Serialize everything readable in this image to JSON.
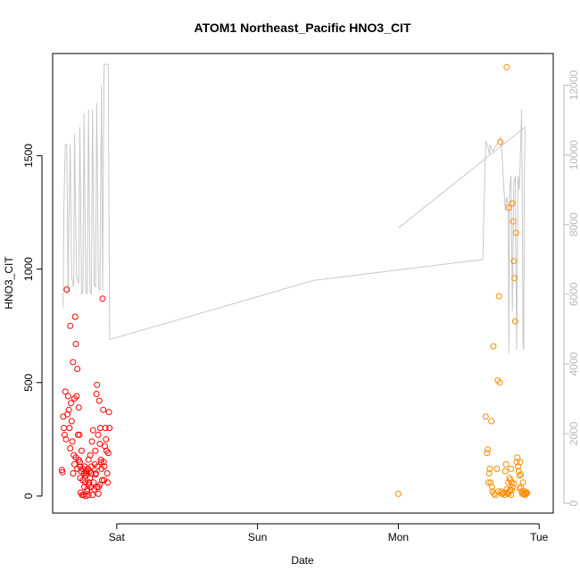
{
  "chart_data": {
    "type": "scatter",
    "title": "ATOM1 Northeast_Pacific HNO3_CIT",
    "xlabel": "Date",
    "ylabel": "HNO3_CIT",
    "x_unit": "days since Sat 00:00",
    "xlim": [
      -0.455,
      3.1
    ],
    "x_ticks": [
      {
        "label": "Sat",
        "value": 0
      },
      {
        "label": "Sun",
        "value": 1
      },
      {
        "label": "Mon",
        "value": 2
      },
      {
        "label": "Tue",
        "value": 3
      }
    ],
    "ylim": [
      -75,
      1950
    ],
    "y_ticks": [
      0,
      500,
      1000,
      1500
    ],
    "y2_label": "",
    "y2lim": [
      -280,
      12910
    ],
    "y2_ticks": [
      0,
      2000,
      4000,
      6000,
      8000,
      10000,
      12000
    ],
    "grid": false,
    "legend": "none",
    "colors": {
      "series_1": "#ff0000",
      "series_2": "#ff8c00",
      "secondary_line": "#c8c8c8",
      "right_axis": "#b8b8b8",
      "frame": "#000000"
    },
    "series": [
      {
        "color": "#ff0000",
        "marker": "open-circle",
        "points": [
          [
            -0.39,
            115
          ],
          [
            -0.385,
            105
          ],
          [
            -0.38,
            350
          ],
          [
            -0.375,
            300
          ],
          [
            -0.37,
            270
          ],
          [
            -0.365,
            460
          ],
          [
            -0.36,
            250
          ],
          [
            -0.355,
            910
          ],
          [
            -0.35,
            360
          ],
          [
            -0.345,
            440
          ],
          [
            -0.34,
            380
          ],
          [
            -0.335,
            300
          ],
          [
            -0.33,
            750
          ],
          [
            -0.325,
            410
          ],
          [
            -0.32,
            330
          ],
          [
            -0.315,
            240
          ],
          [
            -0.31,
            590
          ],
          [
            -0.305,
            180
          ],
          [
            -0.3,
            430
          ],
          [
            -0.295,
            790
          ],
          [
            -0.29,
            670
          ],
          [
            -0.285,
            440
          ],
          [
            -0.28,
            560
          ],
          [
            -0.275,
            270
          ],
          [
            -0.27,
            390
          ],
          [
            -0.265,
            270
          ],
          [
            -0.262,
            150
          ],
          [
            -0.259,
            80
          ],
          [
            -0.256,
            15
          ],
          [
            -0.253,
            110
          ],
          [
            -0.25,
            200
          ],
          [
            -0.246,
            5
          ],
          [
            -0.243,
            120
          ],
          [
            -0.24,
            70
          ],
          [
            -0.236,
            5
          ],
          [
            -0.232,
            100
          ],
          [
            -0.228,
            130
          ],
          [
            -0.224,
            60
          ],
          [
            -0.22,
            0
          ],
          [
            -0.216,
            110
          ],
          [
            -0.212,
            100
          ],
          [
            -0.208,
            30
          ],
          [
            -0.204,
            120
          ],
          [
            -0.2,
            5
          ],
          [
            -0.196,
            60
          ],
          [
            -0.192,
            110
          ],
          [
            -0.188,
            180
          ],
          [
            -0.184,
            40
          ],
          [
            -0.18,
            100
          ],
          [
            -0.176,
            240
          ],
          [
            -0.172,
            5
          ],
          [
            -0.168,
            290
          ],
          [
            -0.164,
            60
          ],
          [
            -0.16,
            30
          ],
          [
            -0.156,
            140
          ],
          [
            -0.152,
            200
          ],
          [
            -0.148,
            100
          ],
          [
            -0.144,
            450
          ],
          [
            -0.14,
            490
          ],
          [
            -0.136,
            130
          ],
          [
            -0.132,
            270
          ],
          [
            -0.128,
            40
          ],
          [
            -0.124,
            420
          ],
          [
            -0.12,
            230
          ],
          [
            -0.116,
            300
          ],
          [
            -0.112,
            160
          ],
          [
            -0.108,
            120
          ],
          [
            -0.104,
            70
          ],
          [
            -0.1,
            870
          ],
          [
            -0.096,
            380
          ],
          [
            -0.092,
            150
          ],
          [
            -0.088,
            130
          ],
          [
            -0.084,
            220
          ],
          [
            -0.08,
            300
          ],
          [
            -0.076,
            250
          ],
          [
            -0.072,
            200
          ],
          [
            -0.068,
            100
          ],
          [
            -0.064,
            60
          ],
          [
            -0.06,
            190
          ],
          [
            -0.056,
            370
          ],
          [
            -0.052,
            300
          ],
          [
            -0.3,
            140
          ],
          [
            -0.29,
            170
          ],
          [
            -0.28,
            120
          ],
          [
            -0.27,
            160
          ],
          [
            -0.26,
            130
          ],
          [
            -0.22,
            90
          ],
          [
            -0.21,
            20
          ],
          [
            -0.2,
            50
          ],
          [
            -0.19,
            80
          ],
          [
            -0.18,
            130
          ],
          [
            -0.15,
            95
          ],
          [
            -0.14,
            40
          ],
          [
            -0.13,
            10
          ],
          [
            -0.12,
            50
          ],
          [
            -0.11,
            150
          ],
          [
            -0.2,
            160
          ],
          [
            -0.23,
            40
          ],
          [
            -0.33,
            210
          ],
          [
            -0.31,
            100
          ],
          [
            -0.09,
            70
          ]
        ]
      },
      {
        "color": "#ff8c00",
        "marker": "open-circle",
        "points": [
          [
            2.0,
            10
          ],
          [
            2.62,
            350
          ],
          [
            2.63,
            190
          ],
          [
            2.635,
            205
          ],
          [
            2.64,
            60
          ],
          [
            2.645,
            100
          ],
          [
            2.65,
            120
          ],
          [
            2.655,
            60
          ],
          [
            2.66,
            330
          ],
          [
            2.665,
            40
          ],
          [
            2.67,
            20
          ],
          [
            2.675,
            660
          ],
          [
            2.68,
            10
          ],
          [
            2.69,
            5
          ],
          [
            2.7,
            120
          ],
          [
            2.705,
            510
          ],
          [
            2.71,
            20
          ],
          [
            2.715,
            880
          ],
          [
            2.72,
            500
          ],
          [
            2.725,
            1560
          ],
          [
            2.73,
            20
          ],
          [
            2.735,
            10
          ],
          [
            2.74,
            10
          ],
          [
            2.75,
            15
          ],
          [
            2.755,
            5
          ],
          [
            2.76,
            110
          ],
          [
            2.765,
            140
          ],
          [
            2.77,
            1890
          ],
          [
            2.775,
            15
          ],
          [
            2.78,
            10
          ],
          [
            2.785,
            1270
          ],
          [
            2.79,
            80
          ],
          [
            2.795,
            30
          ],
          [
            2.8,
            120
          ],
          [
            2.805,
            60
          ],
          [
            2.81,
            1290
          ],
          [
            2.815,
            1210
          ],
          [
            2.82,
            1035
          ],
          [
            2.825,
            960
          ],
          [
            2.83,
            770
          ],
          [
            2.835,
            1160
          ],
          [
            2.84,
            150
          ],
          [
            2.845,
            170
          ],
          [
            2.85,
            130
          ],
          [
            2.855,
            110
          ],
          [
            2.86,
            90
          ],
          [
            2.865,
            150
          ],
          [
            2.87,
            40
          ],
          [
            2.875,
            20
          ],
          [
            2.88,
            10
          ],
          [
            2.885,
            60
          ],
          [
            2.89,
            10
          ],
          [
            2.895,
            10
          ],
          [
            2.9,
            5
          ],
          [
            2.905,
            15
          ],
          [
            2.91,
            10
          ],
          [
            2.915,
            15
          ],
          [
            2.79,
            20
          ],
          [
            2.8,
            5
          ],
          [
            2.81,
            40
          ],
          [
            2.805,
            25
          ],
          [
            2.77,
            30
          ],
          [
            2.78,
            60
          ],
          [
            2.795,
            70
          ],
          [
            2.82,
            55
          ],
          [
            2.86,
            35
          ],
          [
            2.87,
            95
          ],
          [
            2.9,
            20
          ]
        ]
      }
    ],
    "secondary_line": {
      "color": "#c8c8c8",
      "axis": "right",
      "points": [
        [
          -0.38,
          5600
        ],
        [
          -0.375,
          8500
        ],
        [
          -0.365,
          10300
        ],
        [
          -0.355,
          10300
        ],
        [
          -0.345,
          6000
        ],
        [
          -0.34,
          8000
        ],
        [
          -0.33,
          10300
        ],
        [
          -0.32,
          6500
        ],
        [
          -0.305,
          6200
        ],
        [
          -0.3,
          10600
        ],
        [
          -0.285,
          6500
        ],
        [
          -0.27,
          6300
        ],
        [
          -0.262,
          10800
        ],
        [
          -0.25,
          6000
        ],
        [
          -0.24,
          6100
        ],
        [
          -0.232,
          11200
        ],
        [
          -0.22,
          6100
        ],
        [
          -0.21,
          6000
        ],
        [
          -0.2,
          11300
        ],
        [
          -0.19,
          6100
        ],
        [
          -0.18,
          6000
        ],
        [
          -0.172,
          11300
        ],
        [
          -0.16,
          6300
        ],
        [
          -0.15,
          6200
        ],
        [
          -0.142,
          11500
        ],
        [
          -0.13,
          6200
        ],
        [
          -0.12,
          6100
        ],
        [
          -0.108,
          12000
        ],
        [
          -0.1,
          6100
        ],
        [
          -0.09,
          12600
        ],
        [
          -0.06,
          12600
        ],
        [
          -0.05,
          4700
        ],
        [
          1.4,
          6400
        ],
        [
          2.6,
          7000
        ],
        [
          2.62,
          10400
        ],
        [
          2.63,
          10300
        ],
        [
          2.65,
          10000
        ],
        [
          2.65,
          10300
        ],
        [
          2.67,
          10100
        ],
        [
          2.7,
          10300
        ],
        [
          2.72,
          10500
        ],
        [
          2.73,
          10500
        ],
        [
          2.75,
          9000
        ],
        [
          2.76,
          8400
        ],
        [
          2.77,
          8800
        ],
        [
          2.78,
          8500
        ],
        [
          2.785,
          4300
        ],
        [
          2.79,
          9000
        ],
        [
          2.8,
          9400
        ],
        [
          2.81,
          5500
        ],
        [
          2.82,
          9200
        ],
        [
          2.83,
          9400
        ],
        [
          2.84,
          4400
        ],
        [
          2.85,
          9400
        ],
        [
          2.86,
          9000
        ],
        [
          2.87,
          10500
        ],
        [
          2.875,
          11300
        ],
        [
          2.88,
          9000
        ],
        [
          2.885,
          4600
        ],
        [
          2.89,
          4400
        ],
        [
          2.895,
          9300
        ],
        [
          2.9,
          10500
        ],
        [
          2.9,
          10800
        ],
        [
          2.0,
          7900
        ]
      ]
    }
  }
}
